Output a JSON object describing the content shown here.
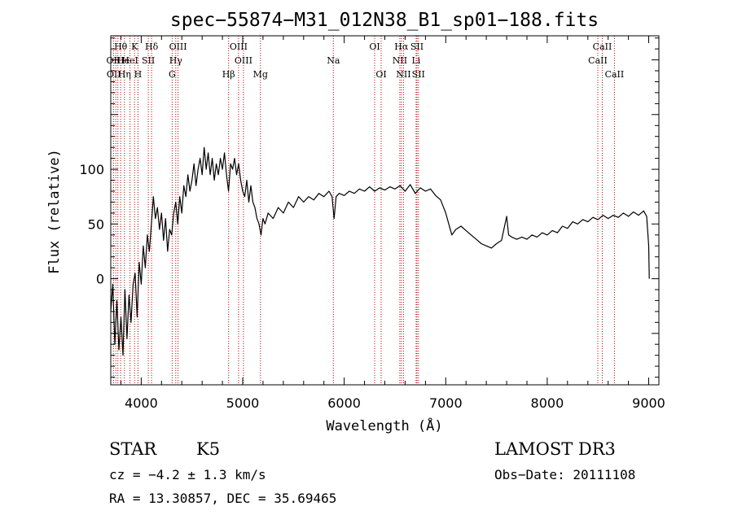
{
  "chart_data": {
    "type": "line",
    "title": "spec−55874−M31_012N38_B1_sp01−188.fits",
    "xlabel": "Wavelength (Å)",
    "ylabel": "Flux (relative)",
    "xlim": [
      3700,
      9100
    ],
    "ylim": [
      -97,
      222
    ],
    "x_ticks": [
      4000,
      5000,
      6000,
      7000,
      8000,
      9000
    ],
    "y_ticks": [
      0,
      50,
      100
    ],
    "y_tick_labels": [
      "0",
      "50",
      "100"
    ],
    "series": [
      {
        "name": "flux",
        "color": "#000000",
        "points": [
          [
            3700,
            -30
          ],
          [
            3720,
            -5
          ],
          [
            3740,
            -60
          ],
          [
            3760,
            -20
          ],
          [
            3780,
            -65
          ],
          [
            3800,
            -35
          ],
          [
            3820,
            -70
          ],
          [
            3840,
            -10
          ],
          [
            3860,
            -55
          ],
          [
            3880,
            -15
          ],
          [
            3900,
            -40
          ],
          [
            3920,
            -5
          ],
          [
            3940,
            5
          ],
          [
            3960,
            -35
          ],
          [
            3980,
            15
          ],
          [
            4000,
            -5
          ],
          [
            4020,
            30
          ],
          [
            4040,
            10
          ],
          [
            4060,
            40
          ],
          [
            4080,
            25
          ],
          [
            4100,
            50
          ],
          [
            4120,
            75
          ],
          [
            4140,
            55
          ],
          [
            4160,
            65
          ],
          [
            4180,
            45
          ],
          [
            4200,
            60
          ],
          [
            4220,
            35
          ],
          [
            4240,
            55
          ],
          [
            4260,
            25
          ],
          [
            4280,
            45
          ],
          [
            4300,
            40
          ],
          [
            4320,
            60
          ],
          [
            4340,
            70
          ],
          [
            4360,
            50
          ],
          [
            4380,
            75
          ],
          [
            4400,
            60
          ],
          [
            4420,
            85
          ],
          [
            4440,
            75
          ],
          [
            4460,
            95
          ],
          [
            4480,
            80
          ],
          [
            4500,
            90
          ],
          [
            4520,
            105
          ],
          [
            4540,
            85
          ],
          [
            4560,
            100
          ],
          [
            4580,
            110
          ],
          [
            4600,
            95
          ],
          [
            4620,
            120
          ],
          [
            4640,
            100
          ],
          [
            4660,
            115
          ],
          [
            4680,
            95
          ],
          [
            4700,
            110
          ],
          [
            4720,
            90
          ],
          [
            4740,
            105
          ],
          [
            4760,
            95
          ],
          [
            4780,
            110
          ],
          [
            4800,
            100
          ],
          [
            4820,
            115
          ],
          [
            4840,
            95
          ],
          [
            4860,
            80
          ],
          [
            4880,
            105
          ],
          [
            4900,
            100
          ],
          [
            4920,
            110
          ],
          [
            4940,
            95
          ],
          [
            4960,
            105
          ],
          [
            4980,
            90
          ],
          [
            5000,
            80
          ],
          [
            5020,
            75
          ],
          [
            5040,
            90
          ],
          [
            5060,
            70
          ],
          [
            5080,
            85
          ],
          [
            5100,
            70
          ],
          [
            5120,
            65
          ],
          [
            5140,
            55
          ],
          [
            5160,
            50
          ],
          [
            5180,
            40
          ],
          [
            5200,
            55
          ],
          [
            5220,
            50
          ],
          [
            5250,
            60
          ],
          [
            5300,
            55
          ],
          [
            5350,
            65
          ],
          [
            5400,
            60
          ],
          [
            5450,
            70
          ],
          [
            5500,
            65
          ],
          [
            5550,
            75
          ],
          [
            5600,
            70
          ],
          [
            5650,
            75
          ],
          [
            5700,
            72
          ],
          [
            5750,
            78
          ],
          [
            5800,
            75
          ],
          [
            5850,
            80
          ],
          [
            5880,
            75
          ],
          [
            5900,
            55
          ],
          [
            5920,
            75
          ],
          [
            5950,
            78
          ],
          [
            6000,
            76
          ],
          [
            6050,
            80
          ],
          [
            6100,
            78
          ],
          [
            6150,
            82
          ],
          [
            6200,
            80
          ],
          [
            6250,
            84
          ],
          [
            6300,
            80
          ],
          [
            6350,
            83
          ],
          [
            6400,
            81
          ],
          [
            6450,
            84
          ],
          [
            6500,
            82
          ],
          [
            6550,
            85
          ],
          [
            6600,
            80
          ],
          [
            6650,
            86
          ],
          [
            6700,
            78
          ],
          [
            6750,
            83
          ],
          [
            6800,
            80
          ],
          [
            6850,
            82
          ],
          [
            6900,
            76
          ],
          [
            6950,
            72
          ],
          [
            7000,
            60
          ],
          [
            7030,
            50
          ],
          [
            7060,
            40
          ],
          [
            7100,
            45
          ],
          [
            7150,
            48
          ],
          [
            7200,
            44
          ],
          [
            7250,
            40
          ],
          [
            7300,
            36
          ],
          [
            7350,
            32
          ],
          [
            7400,
            30
          ],
          [
            7450,
            28
          ],
          [
            7500,
            32
          ],
          [
            7550,
            35
          ],
          [
            7600,
            57
          ],
          [
            7620,
            40
          ],
          [
            7650,
            38
          ],
          [
            7700,
            36
          ],
          [
            7750,
            38
          ],
          [
            7800,
            36
          ],
          [
            7850,
            40
          ],
          [
            7900,
            38
          ],
          [
            7950,
            42
          ],
          [
            8000,
            40
          ],
          [
            8050,
            44
          ],
          [
            8100,
            42
          ],
          [
            8150,
            48
          ],
          [
            8200,
            46
          ],
          [
            8250,
            52
          ],
          [
            8300,
            50
          ],
          [
            8350,
            54
          ],
          [
            8400,
            52
          ],
          [
            8450,
            56
          ],
          [
            8500,
            54
          ],
          [
            8550,
            58
          ],
          [
            8600,
            55
          ],
          [
            8650,
            58
          ],
          [
            8700,
            56
          ],
          [
            8750,
            60
          ],
          [
            8800,
            57
          ],
          [
            8850,
            61
          ],
          [
            8900,
            58
          ],
          [
            8950,
            62
          ],
          [
            8980,
            57
          ],
          [
            9000,
            30
          ],
          [
            9005,
            0
          ]
        ]
      }
    ],
    "annotations": [
      {
        "text": "Hθ",
        "wavelength": 3798,
        "row": 1
      },
      {
        "text": "OII",
        "wavelength": 3727,
        "row": 2
      },
      {
        "text": "OII",
        "wavelength": 3730,
        "row": 3
      },
      {
        "text": "He",
        "wavelength": 3820,
        "row": 2
      },
      {
        "text": "Hη",
        "wavelength": 3835,
        "row": 3
      },
      {
        "text": "K",
        "wavelength": 3934,
        "row": 1
      },
      {
        "text": "HeI",
        "wavelength": 3889,
        "row": 2
      },
      {
        "text": "H",
        "wavelength": 3968,
        "row": 3
      },
      {
        "text": "Hδ",
        "wavelength": 4102,
        "row": 1
      },
      {
        "text": "SII",
        "wavelength": 4070,
        "row": 2
      },
      {
        "text": "OIII",
        "wavelength": 4363,
        "row": 1
      },
      {
        "text": "Hγ",
        "wavelength": 4340,
        "row": 2
      },
      {
        "text": "G",
        "wavelength": 4305,
        "row": 3
      },
      {
        "text": "Hβ",
        "wavelength": 4861,
        "row": 3
      },
      {
        "text": "OIII",
        "wavelength": 4959,
        "row": 1
      },
      {
        "text": "OIII",
        "wavelength": 5007,
        "row": 2
      },
      {
        "text": "Mg",
        "wavelength": 5175,
        "row": 3
      },
      {
        "text": "Na",
        "wavelength": 5893,
        "row": 2
      },
      {
        "text": "OI",
        "wavelength": 6300,
        "row": 1
      },
      {
        "text": "OI",
        "wavelength": 6364,
        "row": 3
      },
      {
        "text": "Hα",
        "wavelength": 6563,
        "row": 1
      },
      {
        "text": "NII",
        "wavelength": 6548,
        "row": 2
      },
      {
        "text": "NII",
        "wavelength": 6584,
        "row": 3
      },
      {
        "text": "SII",
        "wavelength": 6717,
        "row": 1
      },
      {
        "text": "Li",
        "wavelength": 6708,
        "row": 2
      },
      {
        "text": "SII",
        "wavelength": 6731,
        "row": 3
      },
      {
        "text": "CaII",
        "wavelength": 8542,
        "row": 1
      },
      {
        "text": "CaII",
        "wavelength": 8498,
        "row": 2
      },
      {
        "text": "CaII",
        "wavelength": 8662,
        "row": 3
      }
    ],
    "line_marker_wavelengths": [
      3727,
      3750,
      3770,
      3798,
      3835,
      3889,
      3934,
      3968,
      4070,
      4102,
      4305,
      4340,
      4363,
      4861,
      4959,
      5007,
      5175,
      5893,
      6300,
      6364,
      6548,
      6563,
      6584,
      6708,
      6717,
      6731,
      8498,
      8542,
      8662
    ],
    "line_marker_color": "#c00000"
  },
  "info": {
    "object_class": "STAR",
    "subclass": "K5",
    "survey": "LAMOST DR3",
    "redshift": "cz = −4.2 ± 1.3 km/s",
    "obs_date": "Obs−Date: 20111108",
    "coords": "RA =  13.30857, DEC =  35.69465"
  }
}
